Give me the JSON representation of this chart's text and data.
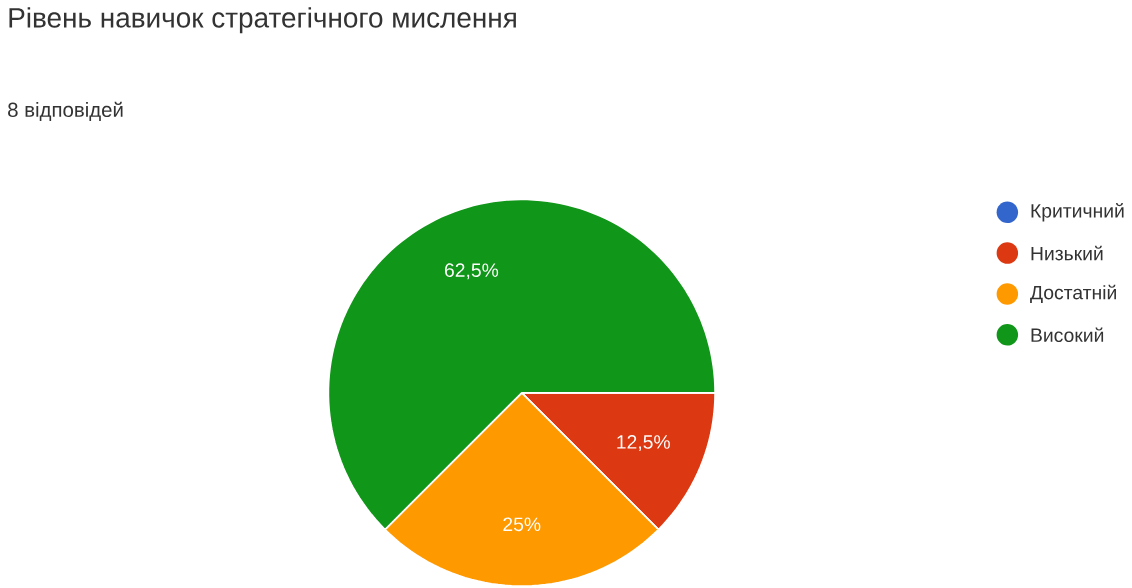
{
  "chart_data": {
    "type": "pie",
    "title": "Рівень навичок стратегічного мислення",
    "subtitle": "8 відповідей",
    "categories": [
      "Критичний",
      "Низький",
      "Достатній",
      "Високий"
    ],
    "values": [
      0,
      12.5,
      25,
      62.5
    ],
    "colors": [
      "#3366cc",
      "#dc3912",
      "#ff9900",
      "#109618"
    ],
    "value_labels": [
      null,
      "12,5%",
      "25%",
      "62,5%"
    ],
    "legend": "right"
  }
}
